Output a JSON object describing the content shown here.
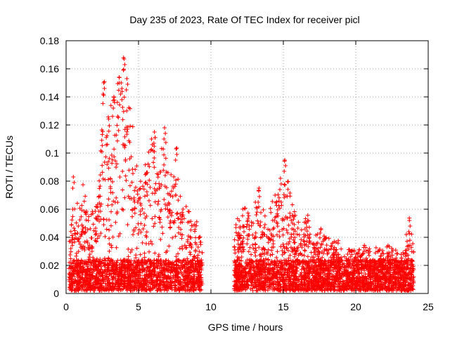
{
  "chart_data": {
    "type": "scatter",
    "title": "Day 235 of 2023, Rate Of TEC Index for receiver picl",
    "xlabel": "GPS time / hours",
    "ylabel": "ROTI / TECUs",
    "xlim": [
      0,
      25
    ],
    "ylim": [
      0,
      0.18
    ],
    "grid": true,
    "marker": "+",
    "color": "#ff0000",
    "x_ticks": [
      0,
      5,
      10,
      15,
      20,
      25
    ],
    "x_tick_labels": [
      "0",
      "5",
      "10",
      "15",
      "20",
      "25"
    ],
    "y_ticks": [
      0,
      0.02,
      0.04,
      0.06,
      0.08,
      0.1,
      0.12,
      0.14,
      0.16,
      0.18
    ],
    "y_tick_labels": [
      "0",
      "0.02",
      "0.04",
      "0.06",
      "0.08",
      "0.1",
      "0.12",
      "0.14",
      "0.16",
      "0.18"
    ],
    "coverage": [
      {
        "start": 0.2,
        "end": 9.4
      },
      {
        "start": 11.6,
        "end": 24.0
      }
    ],
    "envelope": [
      [
        0.2,
        0.035
      ],
      [
        0.5,
        0.075
      ],
      [
        0.8,
        0.06
      ],
      [
        1.2,
        0.08
      ],
      [
        1.6,
        0.05
      ],
      [
        2.0,
        0.065
      ],
      [
        2.3,
        0.09
      ],
      [
        2.6,
        0.15
      ],
      [
        2.9,
        0.12
      ],
      [
        3.2,
        0.135
      ],
      [
        3.6,
        0.155
      ],
      [
        4.0,
        0.167
      ],
      [
        4.4,
        0.13
      ],
      [
        4.8,
        0.1
      ],
      [
        5.2,
        0.085
      ],
      [
        5.6,
        0.1
      ],
      [
        6.0,
        0.115
      ],
      [
        6.4,
        0.09
      ],
      [
        6.8,
        0.118
      ],
      [
        7.2,
        0.085
      ],
      [
        7.6,
        0.103
      ],
      [
        8.0,
        0.065
      ],
      [
        8.5,
        0.06
      ],
      [
        9.0,
        0.05
      ],
      [
        9.4,
        0.045
      ],
      [
        11.6,
        0.045
      ],
      [
        12.2,
        0.06
      ],
      [
        12.8,
        0.055
      ],
      [
        13.3,
        0.073
      ],
      [
        13.8,
        0.055
      ],
      [
        14.3,
        0.065
      ],
      [
        14.8,
        0.075
      ],
      [
        15.1,
        0.095
      ],
      [
        15.5,
        0.065
      ],
      [
        16.0,
        0.048
      ],
      [
        16.5,
        0.058
      ],
      [
        17.0,
        0.05
      ],
      [
        17.5,
        0.046
      ],
      [
        18.0,
        0.045
      ],
      [
        18.5,
        0.04
      ],
      [
        19.0,
        0.035
      ],
      [
        19.5,
        0.03
      ],
      [
        20.0,
        0.032
      ],
      [
        20.5,
        0.034
      ],
      [
        21.0,
        0.035
      ],
      [
        21.5,
        0.032
      ],
      [
        22.0,
        0.03
      ],
      [
        22.5,
        0.036
      ],
      [
        23.0,
        0.03
      ],
      [
        23.4,
        0.035
      ],
      [
        23.7,
        0.052
      ],
      [
        24.0,
        0.03
      ]
    ],
    "peaks": [
      [
        0.5,
        0.083
      ],
      [
        2.6,
        0.15
      ],
      [
        3.3,
        0.14
      ],
      [
        3.8,
        0.15
      ],
      [
        4.0,
        0.167
      ],
      [
        4.2,
        0.153
      ],
      [
        5.9,
        0.11
      ],
      [
        6.1,
        0.115
      ],
      [
        6.8,
        0.118
      ],
      [
        7.6,
        0.103
      ],
      [
        13.3,
        0.073
      ],
      [
        14.8,
        0.082
      ],
      [
        15.1,
        0.095
      ],
      [
        23.7,
        0.052
      ]
    ]
  }
}
